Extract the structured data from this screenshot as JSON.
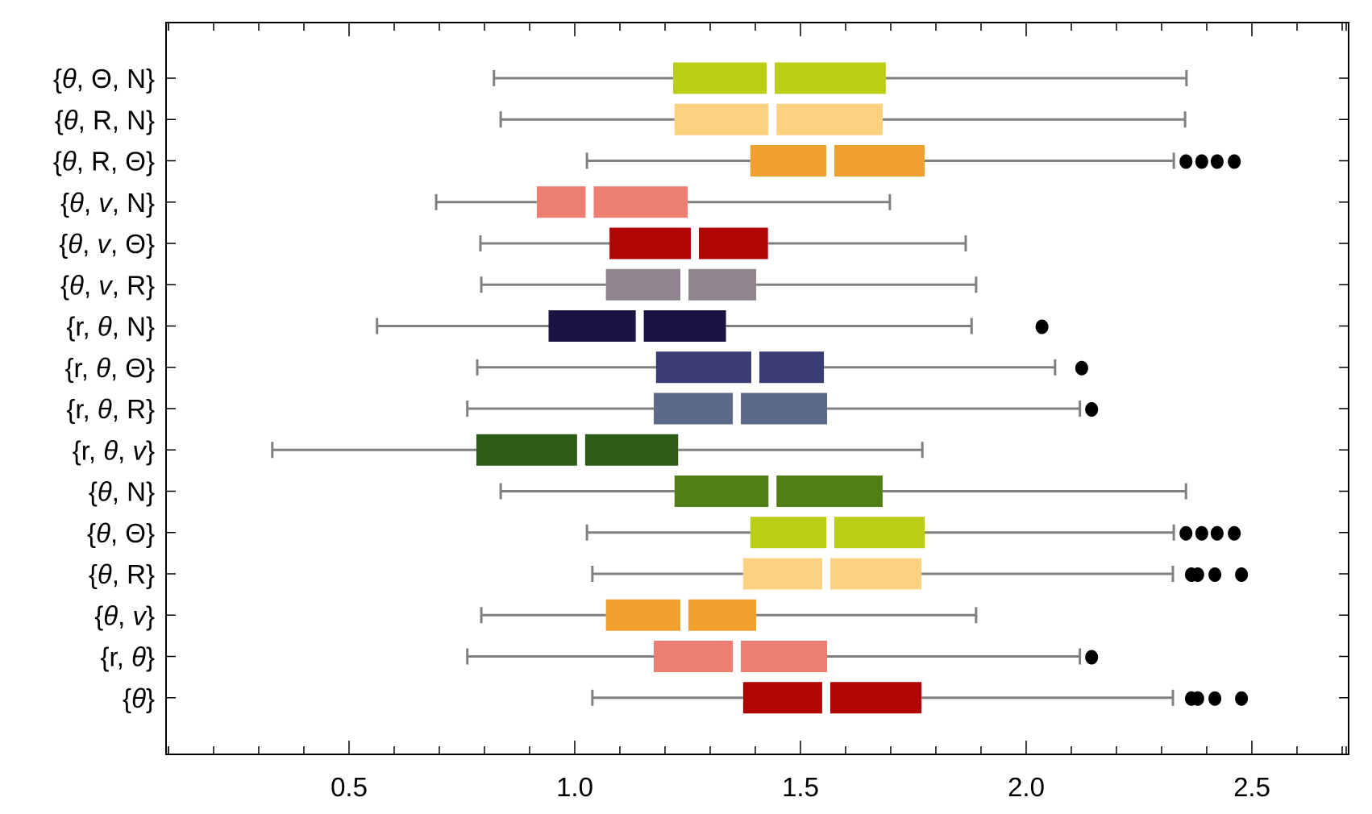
{
  "chart_data": {
    "type": "box",
    "orientation": "horizontal",
    "title": "",
    "xlabel": "",
    "ylabel": "",
    "xlim": [
      0.095,
      2.714
    ],
    "x_major_ticks": [
      0.5,
      1.0,
      1.5,
      2.0,
      2.5
    ],
    "x_tick_labels": [
      "0.5",
      "1.0",
      "1.5",
      "2.0",
      "2.5"
    ],
    "x_minor_tick_step": 0.1,
    "grid": false,
    "legend": null,
    "categories": [
      {
        "label": [
          "{",
          {
            "t": "θ",
            "i": true
          },
          ", Θ, N}"
        ],
        "text": "{θ, Θ, N}"
      },
      {
        "label": [
          "{",
          {
            "t": "θ",
            "i": true
          },
          ", R, N}"
        ],
        "text": "{θ, R, N}"
      },
      {
        "label": [
          "{",
          {
            "t": "θ",
            "i": true
          },
          ", R, Θ}"
        ],
        "text": "{θ, R, Θ}"
      },
      {
        "label": [
          "{",
          {
            "t": "θ",
            "i": true
          },
          ", ",
          {
            "t": "v",
            "i": true
          },
          ", N}"
        ],
        "text": "{θ, v, N}"
      },
      {
        "label": [
          "{",
          {
            "t": "θ",
            "i": true
          },
          ", ",
          {
            "t": "v",
            "i": true
          },
          ", Θ}"
        ],
        "text": "{θ, v, Θ}"
      },
      {
        "label": [
          "{",
          {
            "t": "θ",
            "i": true
          },
          ", ",
          {
            "t": "v",
            "i": true
          },
          ", R}"
        ],
        "text": "{θ, v, R}"
      },
      {
        "label": [
          "{r, ",
          {
            "t": "θ",
            "i": true
          },
          ", N}"
        ],
        "text": "{r, θ, N}"
      },
      {
        "label": [
          "{r, ",
          {
            "t": "θ",
            "i": true
          },
          ", Θ}"
        ],
        "text": "{r, θ, Θ}"
      },
      {
        "label": [
          "{r, ",
          {
            "t": "θ",
            "i": true
          },
          ", R}"
        ],
        "text": "{r, θ, R}"
      },
      {
        "label": [
          "{r, ",
          {
            "t": "θ",
            "i": true
          },
          ", ",
          {
            "t": "v",
            "i": true
          },
          "}"
        ],
        "text": "{r, θ, v}"
      },
      {
        "label": [
          "{",
          {
            "t": "θ",
            "i": true
          },
          ", N}"
        ],
        "text": "{θ, N}"
      },
      {
        "label": [
          "{",
          {
            "t": "θ",
            "i": true
          },
          ", Θ}"
        ],
        "text": "{θ, Θ}"
      },
      {
        "label": [
          "{",
          {
            "t": "θ",
            "i": true
          },
          ", R}"
        ],
        "text": "{θ, R}"
      },
      {
        "label": [
          "{",
          {
            "t": "θ",
            "i": true
          },
          ", ",
          {
            "t": "v",
            "i": true
          },
          "}"
        ],
        "text": "{θ, v}"
      },
      {
        "label": [
          "{r, ",
          {
            "t": "θ",
            "i": true
          },
          "}"
        ],
        "text": "{r, θ}"
      },
      {
        "label": [
          "{",
          {
            "t": "θ",
            "i": true
          },
          "}"
        ],
        "text": "{θ}"
      }
    ],
    "series": [
      {
        "name": "{θ, Θ, N}",
        "color": "#b9ce14",
        "whisker_low": 0.821,
        "q1": 1.218,
        "median": 1.434,
        "q3": 1.689,
        "whisker_high": 2.355,
        "outliers": []
      },
      {
        "name": "{θ, R, N}",
        "color": "#fcd17f",
        "whisker_low": 0.836,
        "q1": 1.221,
        "median": 1.438,
        "q3": 1.682,
        "whisker_high": 2.352,
        "outliers": []
      },
      {
        "name": "{θ, R, Θ}",
        "color": "#f0a02c",
        "whisker_low": 1.027,
        "q1": 1.389,
        "median": 1.566,
        "q3": 1.775,
        "whisker_high": 2.327,
        "outliers": [
          2.354,
          2.389,
          2.423,
          2.461
        ]
      },
      {
        "name": "{θ, v, N}",
        "color": "#ec7e72",
        "whisker_low": 0.693,
        "q1": 0.916,
        "median": 1.033,
        "q3": 1.25,
        "whisker_high": 1.698,
        "outliers": []
      },
      {
        "name": "{θ, v, Θ}",
        "color": "#b10503",
        "whisker_low": 0.791,
        "q1": 1.077,
        "median": 1.266,
        "q3": 1.428,
        "whisker_high": 1.866,
        "outliers": []
      },
      {
        "name": "{θ, v, R}",
        "color": "#8f858e",
        "whisker_low": 0.793,
        "q1": 1.069,
        "median": 1.243,
        "q3": 1.402,
        "whisker_high": 1.889,
        "outliers": []
      },
      {
        "name": "{r, θ, N}",
        "color": "#1b1442",
        "whisker_low": 0.562,
        "q1": 0.942,
        "median": 1.144,
        "q3": 1.335,
        "whisker_high": 1.879,
        "outliers": [
          2.035
        ]
      },
      {
        "name": "{r, θ, Θ}",
        "color": "#3a3d73",
        "whisker_low": 0.784,
        "q1": 1.18,
        "median": 1.4,
        "q3": 1.552,
        "whisker_high": 2.064,
        "outliers": [
          2.123
        ]
      },
      {
        "name": "{r, θ, R}",
        "color": "#5c6987",
        "whisker_low": 0.762,
        "q1": 1.175,
        "median": 1.359,
        "q3": 1.559,
        "whisker_high": 2.119,
        "outliers": [
          2.145
        ]
      },
      {
        "name": "{r, θ, v}",
        "color": "#2e5b16",
        "whisker_low": 0.33,
        "q1": 0.782,
        "median": 1.014,
        "q3": 1.229,
        "whisker_high": 1.77,
        "outliers": []
      },
      {
        "name": "{θ, N}",
        "color": "#527e16",
        "whisker_low": 0.836,
        "q1": 1.221,
        "median": 1.438,
        "q3": 1.682,
        "whisker_high": 2.354,
        "outliers": []
      },
      {
        "name": "{θ, Θ}",
        "color": "#b9ce14",
        "whisker_low": 1.027,
        "q1": 1.389,
        "median": 1.566,
        "q3": 1.775,
        "whisker_high": 2.327,
        "outliers": [
          2.354,
          2.389,
          2.423,
          2.461
        ]
      },
      {
        "name": "{θ, R}",
        "color": "#fcd17f",
        "whisker_low": 1.039,
        "q1": 1.373,
        "median": 1.557,
        "q3": 1.768,
        "whisker_high": 2.325,
        "outliers": [
          2.366,
          2.38,
          2.418,
          2.477
        ]
      },
      {
        "name": "{θ, v}",
        "color": "#f0a02c",
        "whisker_low": 0.793,
        "q1": 1.069,
        "median": 1.243,
        "q3": 1.402,
        "whisker_high": 1.889,
        "outliers": []
      },
      {
        "name": "{r, θ}",
        "color": "#ec7e72",
        "whisker_low": 0.762,
        "q1": 1.175,
        "median": 1.359,
        "q3": 1.559,
        "whisker_high": 2.119,
        "outliers": [
          2.145
        ]
      },
      {
        "name": "{θ}",
        "color": "#b10503",
        "whisker_low": 1.039,
        "q1": 1.373,
        "median": 1.557,
        "q3": 1.768,
        "whisker_high": 2.325,
        "outliers": [
          2.366,
          2.38,
          2.418,
          2.477
        ]
      }
    ]
  },
  "style": {
    "whisker_color": "#808080",
    "outlier_color": "#000000",
    "frame_color": "#000000"
  }
}
